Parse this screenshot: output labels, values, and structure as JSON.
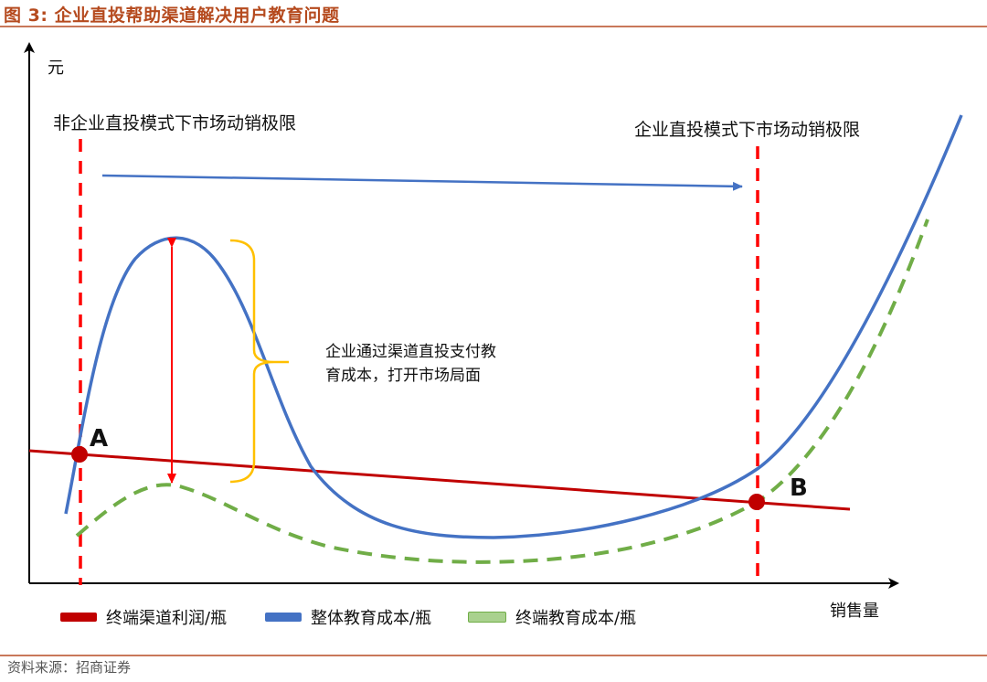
{
  "figure": {
    "title": "图 3:  企业直投帮助渠道解决用户教育问题",
    "source": "资料来源：招商证券"
  },
  "axes": {
    "y_label": "元",
    "x_label": "销售量"
  },
  "markers": {
    "left_limit_label": "非企业直投模式下市场动销极限",
    "right_limit_label": "企业直投模式下市场动销极限",
    "point_a": "A",
    "point_b": "B"
  },
  "annotation": {
    "line1": "企业通过渠道直投支付教",
    "line2": "育成本，打开市场局面"
  },
  "legend": [
    {
      "label": "终端渠道利润/瓶",
      "color": "#c00000"
    },
    {
      "label": "整体教育成本/瓶",
      "color": "#4472c4"
    },
    {
      "label": "终端教育成本/瓶",
      "color": "#70ad47"
    }
  ],
  "colors": {
    "axis": "#000000",
    "profit_line": "#c00000",
    "total_cost_curve": "#4472c4",
    "terminal_cost_curve": "#70ad47",
    "limit_line": "#ff0000",
    "blue_arrow": "#4472c4",
    "bracket": "#ffc000"
  }
}
